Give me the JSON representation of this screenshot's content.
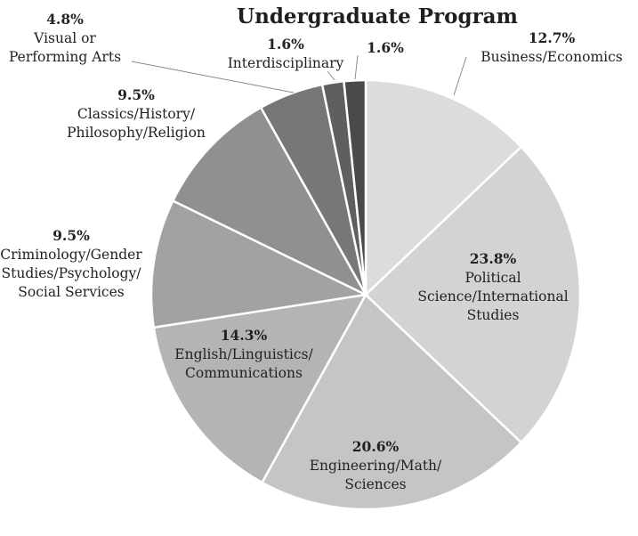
{
  "chart_data": {
    "type": "pie",
    "title": "Undergraduate Program",
    "start_angle_deg": 0,
    "direction": "clockwise",
    "slices": [
      {
        "label": [
          "Business/Economics"
        ],
        "percent_label": "12.7%",
        "value": 12.7,
        "color": "#dcdcdc"
      },
      {
        "label": [
          "Political",
          "Science/International",
          "Studies"
        ],
        "percent_label": "23.8%",
        "value": 23.8,
        "color": "#d3d3d3"
      },
      {
        "label": [
          "Engineering/Math/",
          "Sciences"
        ],
        "percent_label": "20.6%",
        "value": 20.6,
        "color": "#c5c5c5"
      },
      {
        "label": [
          "English/Linguistics/",
          "Communications"
        ],
        "percent_label": "14.3%",
        "value": 14.3,
        "color": "#b4b4b4"
      },
      {
        "label": [
          "Criminology/Gender",
          "Studies/Psychology/",
          "Social Services"
        ],
        "percent_label": "9.5%",
        "value": 9.5,
        "color": "#a2a2a2"
      },
      {
        "label": [
          "Classics/History/",
          "Philosophy/Religion"
        ],
        "percent_label": "9.5%",
        "value": 9.5,
        "color": "#909090"
      },
      {
        "label": [
          "Visual or",
          "Performing Arts"
        ],
        "percent_label": "4.8%",
        "value": 4.8,
        "color": "#777777"
      },
      {
        "label": [
          "Interdisciplinary"
        ],
        "percent_label": "1.6%",
        "value": 1.6,
        "color": "#5f5f5f"
      },
      {
        "label": [],
        "percent_label": "1.6%",
        "value": 1.6,
        "color": "#4a4a4a"
      }
    ]
  }
}
